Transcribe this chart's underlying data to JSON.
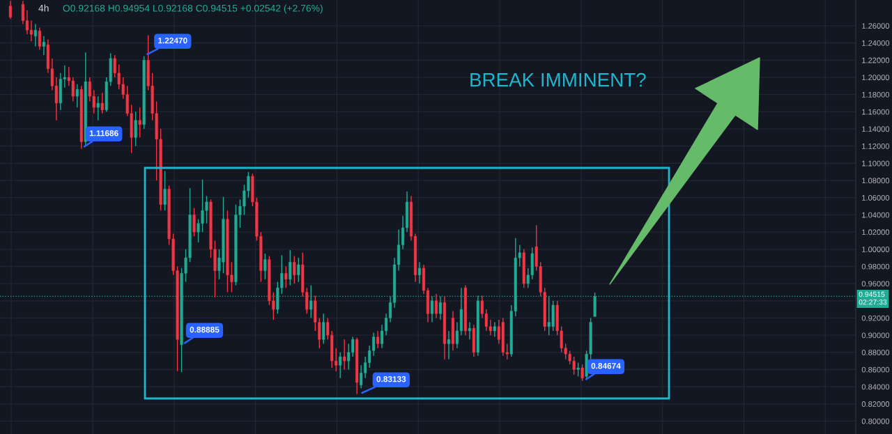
{
  "chart_data": {
    "type": "candlestick",
    "title": "4h",
    "subtitle": "O0.92168 H0.94954 L0.92168 C0.94515 +0.02542 (+2.76%)",
    "categories": [
      null,
      null,
      null,
      null,
      null,
      null,
      null,
      null,
      null,
      null,
      null,
      null,
      null,
      null,
      null,
      null,
      null,
      null,
      null,
      null,
      null,
      null,
      null,
      null,
      null,
      null,
      null,
      null,
      null,
      null,
      null,
      null,
      null,
      null,
      null,
      null,
      null,
      null,
      null,
      null,
      null,
      null,
      null,
      null,
      null,
      null,
      null,
      null,
      null,
      null,
      null,
      null,
      null,
      null,
      null,
      null,
      null,
      null,
      null,
      null,
      null,
      null,
      null,
      null,
      null,
      null,
      null,
      null,
      null,
      null,
      null,
      null,
      null,
      null,
      null,
      null,
      null,
      null,
      null,
      null,
      null,
      null,
      null,
      null,
      null,
      null,
      null,
      null,
      null,
      null,
      null,
      null,
      null,
      null,
      null,
      null,
      null,
      null,
      null,
      null,
      null,
      null,
      null,
      null,
      null,
      null,
      null,
      null,
      null,
      null,
      null,
      null,
      null,
      null,
      null,
      null,
      null,
      null,
      null,
      null,
      null,
      null,
      null,
      null,
      null,
      null,
      null,
      null,
      null,
      null,
      null,
      null,
      null,
      null,
      null,
      null,
      null,
      null,
      null,
      null,
      null,
      null,
      null,
      null,
      null,
      null,
      null,
      null,
      null,
      null,
      null,
      null,
      null,
      null,
      null,
      null,
      null,
      null,
      null,
      null,
      null,
      null,
      null,
      null,
      null,
      null,
      null,
      null,
      null,
      null,
      null,
      null,
      null,
      null,
      null,
      null,
      null,
      null,
      null,
      null,
      null,
      null,
      null,
      null,
      null,
      null,
      null,
      null,
      null,
      null,
      null,
      null,
      null,
      null,
      null,
      null,
      null,
      null,
      null,
      null,
      null,
      null,
      null,
      null,
      null
    ],
    "ohlc": [
      null,
      null,
      [
        1.283,
        1.289,
        1.268,
        1.27
      ],
      null,
      null,
      [
        1.285,
        1.289,
        1.262,
        1.266
      ],
      [
        1.266,
        1.278,
        1.25,
        1.255
      ],
      [
        1.255,
        1.266,
        1.242,
        1.25
      ],
      [
        1.248,
        1.262,
        1.236,
        1.255
      ],
      [
        1.254,
        1.258,
        1.232,
        1.236
      ],
      [
        1.236,
        1.248,
        1.226,
        1.241
      ],
      [
        1.238,
        1.244,
        1.205,
        1.21
      ],
      [
        1.21,
        1.222,
        1.185,
        1.19
      ],
      [
        1.19,
        1.2,
        1.15,
        1.17
      ],
      [
        1.17,
        1.205,
        1.162,
        1.198
      ],
      [
        1.198,
        1.214,
        1.188,
        1.2
      ],
      [
        1.2,
        1.212,
        1.19,
        1.196
      ],
      [
        1.196,
        1.2,
        1.172,
        1.178
      ],
      [
        1.178,
        1.192,
        1.165,
        1.186
      ],
      [
        1.186,
        1.19,
        1.11686,
        1.125
      ],
      [
        1.125,
        1.229,
        1.12,
        1.195
      ],
      [
        1.195,
        1.2,
        1.172,
        1.178
      ],
      [
        1.178,
        1.185,
        1.158,
        1.165
      ],
      [
        1.165,
        1.178,
        1.15,
        1.17
      ],
      [
        1.17,
        1.182,
        1.158,
        1.162
      ],
      [
        1.162,
        1.2,
        1.16,
        1.195
      ],
      [
        1.195,
        1.228,
        1.19,
        1.222
      ],
      [
        1.222,
        1.226,
        1.2,
        1.205
      ],
      [
        1.205,
        1.215,
        1.186,
        1.192
      ],
      [
        1.192,
        1.2,
        1.175,
        1.18
      ],
      [
        1.18,
        1.19,
        1.155,
        1.158
      ],
      [
        1.158,
        1.168,
        1.112,
        1.13
      ],
      [
        1.13,
        1.16,
        1.12,
        1.15
      ],
      [
        1.15,
        1.165,
        1.13,
        1.145
      ],
      [
        1.145,
        1.2247,
        1.14,
        1.22
      ],
      [
        1.22,
        1.249,
        1.185,
        1.19
      ],
      [
        1.19,
        1.205,
        1.15,
        1.158
      ],
      [
        1.158,
        1.172,
        1.08,
        1.128
      ],
      [
        1.128,
        1.14,
        1.045,
        1.052
      ],
      [
        1.052,
        1.091,
        1.045,
        1.07
      ],
      [
        1.07,
        1.074,
        1.005,
        1.012
      ],
      [
        1.012,
        1.018,
        0.97,
        0.975
      ],
      [
        0.975,
        0.98,
        0.858,
        0.895
      ],
      [
        0.88885,
        0.978,
        0.857,
        0.972
      ],
      [
        0.972,
        1.0,
        0.962,
        0.99
      ],
      [
        0.99,
        1.071,
        0.985,
        1.04
      ],
      [
        1.04,
        1.048,
        1.015,
        1.02
      ],
      [
        1.02,
        1.035,
        1.008,
        1.03
      ],
      [
        1.03,
        1.081,
        1.02,
        1.045
      ],
      [
        1.045,
        1.062,
        1.03,
        1.055
      ],
      [
        1.055,
        1.058,
        0.99,
        1.0
      ],
      [
        1.0,
        1.01,
        0.944,
        0.975
      ],
      [
        0.975,
        1.0,
        0.965,
        0.99
      ],
      [
        0.985,
        1.061,
        0.972,
        1.035
      ],
      [
        1.035,
        1.045,
        0.95,
        0.97
      ],
      [
        0.97,
        0.985,
        0.95,
        0.962
      ],
      [
        0.962,
        1.052,
        0.958,
        1.04
      ],
      [
        1.04,
        1.058,
        1.025,
        1.05
      ],
      [
        1.05,
        1.075,
        1.04,
        1.068
      ],
      [
        1.068,
        1.09,
        1.06,
        1.085
      ],
      [
        1.085,
        1.088,
        1.05,
        1.055
      ],
      [
        1.055,
        1.06,
        1.01,
        1.015
      ],
      [
        1.015,
        1.02,
        0.962,
        0.975
      ],
      [
        0.975,
        0.995,
        0.965,
        0.988
      ],
      [
        0.988,
        0.992,
        0.935,
        0.94
      ],
      [
        0.94,
        0.95,
        0.918,
        0.93
      ],
      [
        0.93,
        0.962,
        0.925,
        0.955
      ],
      [
        0.955,
        0.993,
        0.948,
        0.972
      ],
      [
        0.972,
        0.98,
        0.955,
        0.965
      ],
      [
        0.965,
        0.999,
        0.958,
        0.985
      ],
      [
        0.985,
        0.992,
        0.96,
        0.97
      ],
      [
        0.97,
        0.99,
        0.962,
        0.982
      ],
      [
        0.982,
        0.996,
        0.945,
        0.95
      ],
      [
        0.95,
        0.955,
        0.925,
        0.93
      ],
      [
        0.93,
        0.958,
        0.92,
        0.94
      ],
      [
        0.94,
        0.946,
        0.905,
        0.915
      ],
      [
        0.915,
        0.92,
        0.885,
        0.895
      ],
      [
        0.895,
        0.925,
        0.89,
        0.915
      ],
      [
        0.915,
        0.92,
        0.895,
        0.9
      ],
      [
        0.9,
        0.905,
        0.862,
        0.87
      ],
      [
        0.87,
        0.885,
        0.858,
        0.865
      ],
      [
        0.865,
        0.88,
        0.85,
        0.875
      ],
      [
        0.875,
        0.895,
        0.86,
        0.87
      ],
      [
        0.87,
        0.89,
        0.86,
        0.88
      ],
      [
        0.88,
        0.898,
        0.875,
        0.895
      ],
      [
        0.895,
        0.897,
        0.83133,
        0.845
      ],
      [
        0.842,
        0.865,
        0.838,
        0.856
      ],
      [
        0.856,
        0.875,
        0.85,
        0.868
      ],
      [
        0.868,
        0.888,
        0.862,
        0.882
      ],
      [
        0.882,
        0.903,
        0.876,
        0.898
      ],
      [
        0.898,
        0.905,
        0.885,
        0.89
      ],
      [
        0.89,
        0.912,
        0.885,
        0.905
      ],
      [
        0.905,
        0.925,
        0.9,
        0.92
      ],
      [
        0.92,
        0.945,
        0.915,
        0.938
      ],
      [
        0.938,
        0.99,
        0.932,
        0.982
      ],
      [
        0.982,
        1.023,
        0.975,
        1.005
      ],
      [
        1.005,
        1.039,
        1.0,
        1.025
      ],
      [
        1.025,
        1.067,
        1.02,
        1.055
      ],
      [
        1.055,
        1.062,
        1.01,
        1.015
      ],
      [
        1.015,
        1.018,
        0.962,
        0.97
      ],
      [
        0.97,
        0.985,
        0.96,
        0.978
      ],
      [
        0.978,
        0.982,
        0.948,
        0.952
      ],
      [
        0.952,
        0.955,
        0.915,
        0.925
      ],
      [
        0.925,
        0.945,
        0.915,
        0.94
      ],
      [
        0.94,
        0.948,
        0.92,
        0.925
      ],
      [
        0.925,
        0.945,
        0.918,
        0.938
      ],
      [
        0.938,
        0.945,
        0.872,
        0.89
      ],
      [
        0.89,
        0.905,
        0.872,
        0.895
      ],
      [
        0.92,
        0.928,
        0.882,
        0.89
      ],
      [
        0.89,
        0.915,
        0.885,
        0.905
      ],
      [
        0.905,
        0.955,
        0.9,
        0.93
      ],
      [
        0.955,
        0.958,
        0.9,
        0.905
      ],
      [
        0.905,
        0.915,
        0.895,
        0.908
      ],
      [
        0.908,
        0.912,
        0.875,
        0.88
      ],
      [
        0.88,
        0.946,
        0.876,
        0.94
      ],
      [
        0.94,
        0.946,
        0.92,
        0.925
      ],
      [
        0.925,
        0.93,
        0.905,
        0.91
      ],
      [
        0.91,
        0.918,
        0.9,
        0.905
      ],
      [
        0.905,
        0.915,
        0.898,
        0.91
      ],
      [
        0.91,
        0.918,
        0.89,
        0.895
      ],
      [
        0.915,
        0.92,
        0.876,
        0.88
      ],
      [
        0.88,
        0.89,
        0.872,
        0.878
      ],
      [
        0.878,
        0.935,
        0.875,
        0.928
      ],
      [
        0.928,
        1.013,
        0.922,
        0.99
      ],
      [
        0.99,
        1.005,
        0.98,
        0.996
      ],
      [
        0.996,
        1.0,
        0.955,
        0.96
      ],
      [
        0.96,
        0.978,
        0.955,
        0.97
      ],
      [
        0.97,
        1.002,
        0.965,
        0.995
      ],
      [
        1.003,
        1.028,
        0.975,
        0.98
      ],
      [
        0.98,
        0.985,
        0.945,
        0.95
      ],
      [
        0.95,
        0.955,
        0.905,
        0.91
      ],
      [
        0.91,
        0.945,
        0.9,
        0.915
      ],
      [
        0.91,
        0.94,
        0.905,
        0.935
      ],
      [
        0.935,
        0.94,
        0.9,
        0.905
      ],
      [
        0.905,
        0.91,
        0.88,
        0.885
      ],
      [
        0.885,
        0.89,
        0.872,
        0.878
      ],
      [
        0.878,
        0.882,
        0.866,
        0.87
      ],
      [
        0.87,
        0.875,
        0.854,
        0.86
      ],
      [
        0.86,
        0.868,
        0.852,
        0.862
      ],
      [
        0.862,
        0.866,
        0.84674,
        0.85
      ],
      [
        0.852,
        0.882,
        0.848,
        0.878
      ],
      [
        0.878,
        0.92,
        0.872,
        0.915
      ],
      [
        0.92168,
        0.94954,
        0.92168,
        0.94515
      ],
      null,
      null,
      null,
      null,
      null,
      null,
      null,
      null,
      null,
      null,
      null,
      null,
      null,
      null,
      null,
      null,
      null,
      null,
      null,
      null,
      null,
      null,
      null,
      null,
      null,
      null,
      null,
      null,
      null,
      null,
      null,
      null,
      null,
      null,
      null,
      null,
      null,
      null,
      null,
      null,
      null,
      null,
      null,
      null,
      null,
      null,
      null,
      null,
      null,
      null,
      null,
      null,
      null,
      null,
      null,
      null,
      null,
      null,
      null,
      null,
      null,
      null
    ],
    "colors": [
      null,
      null,
      "#f23645",
      null,
      null,
      "#f23645",
      "#f23645",
      "#f23645",
      "#22ab94",
      "#f23645",
      "#22ab94",
      "#f23645",
      "#f23645",
      "#f23645",
      "#22ab94",
      "#22ab94",
      "#f23645",
      "#f23645",
      "#22ab94",
      "#f23645",
      "#22ab94",
      "#f23645",
      "#f23645",
      "#22ab94",
      "#f23645",
      "#22ab94",
      "#22ab94",
      "#f23645",
      "#f23645",
      "#f23645",
      "#f23645",
      "#f23645",
      "#22ab94",
      "#f23645",
      "#22ab94",
      "#f23645",
      "#f23645",
      "#f23645",
      "#f23645",
      "#22ab94",
      "#f23645",
      "#f23645",
      "#f23645",
      "#22ab94",
      "#22ab94",
      "#22ab94",
      "#f23645",
      "#22ab94",
      "#22ab94",
      "#22ab94",
      "#f23645",
      "#f23645",
      "#22ab94",
      "#22ab94",
      "#f23645",
      "#f23645",
      "#22ab94",
      "#22ab94",
      "#22ab94",
      "#22ab94",
      "#f23645",
      "#f23645",
      "#f23645",
      "#22ab94",
      "#f23645",
      "#f23645",
      "#22ab94",
      "#22ab94",
      "#f23645",
      "#22ab94",
      "#f23645",
      "#22ab94",
      "#f23645",
      "#f23645",
      "#22ab94",
      "#f23645",
      "#f23645",
      "#22ab94",
      "#f23645",
      "#f23645",
      "#f23645",
      "#22ab94",
      "#f23645",
      "#22ab94",
      "#22ab94",
      "#f23645",
      "#22ab94",
      "#22ab94",
      "#22ab94",
      "#22ab94",
      "#f23645",
      "#22ab94",
      "#22ab94",
      "#22ab94",
      "#22ab94",
      "#22ab94",
      "#22ab94",
      "#22ab94",
      "#f23645",
      "#f23645",
      "#22ab94",
      "#f23645",
      "#f23645",
      "#22ab94",
      "#f23645",
      "#22ab94",
      "#f23645",
      "#22ab94",
      "#f23645",
      "#22ab94",
      "#22ab94",
      "#f23645",
      "#22ab94",
      "#f23645",
      "#22ab94",
      "#f23645",
      "#f23645",
      "#f23645",
      "#22ab94",
      "#f23645",
      "#f23645",
      "#f23645",
      "#22ab94",
      "#22ab94",
      "#22ab94",
      "#f23645",
      "#22ab94",
      "#22ab94",
      "#f23645",
      "#f23645",
      "#f23645",
      "#22ab94",
      "#22ab94",
      "#f23645",
      "#f23645",
      "#f23645",
      "#f23645",
      "#f23645",
      "#22ab94",
      "#f23645",
      "#22ab94",
      "#22ab94",
      "#22ab94",
      null,
      null,
      null,
      null,
      null,
      null,
      null,
      null,
      null,
      null,
      null,
      null,
      null,
      null,
      null,
      null,
      null,
      null,
      null,
      null,
      null,
      null,
      null,
      null,
      null,
      null,
      null,
      null,
      null,
      null,
      null,
      null,
      null,
      null,
      null,
      null,
      null,
      null,
      null,
      null,
      null,
      null,
      null,
      null,
      null,
      null,
      null,
      null,
      null,
      null,
      null,
      null,
      null,
      null,
      null,
      null,
      null,
      null,
      null,
      null,
      null,
      null
    ],
    "annotations": [
      "1.22470",
      "1.11686",
      "0.88885",
      "0.83133",
      "0.84674",
      "BREAK IMMINENT?"
    ],
    "ylim": [
      0.785,
      1.29
    ],
    "yticks": [
      {
        "value": 0.8,
        "label": "0.80000"
      },
      {
        "value": 0.82,
        "label": "0.82000"
      },
      {
        "value": 0.84,
        "label": "0.84000"
      },
      {
        "value": 0.86,
        "label": "0.86000"
      },
      {
        "value": 0.88,
        "label": "0.88000"
      },
      {
        "value": 0.9,
        "label": "0.90000"
      },
      {
        "value": 0.92,
        "label": "0.92000"
      },
      {
        "value": 0.94,
        "label": null
      },
      {
        "value": 0.96,
        "label": "0.96000"
      },
      {
        "value": 0.98,
        "label": "0.98000"
      },
      {
        "value": 1.0,
        "label": "1.00000"
      },
      {
        "value": 1.02,
        "label": "1.02000"
      },
      {
        "value": 1.04,
        "label": "1.04000"
      },
      {
        "value": 1.06,
        "label": "1.06000"
      },
      {
        "value": 1.08,
        "label": "1.08000"
      },
      {
        "value": 1.1,
        "label": "1.10000"
      },
      {
        "value": 1.12,
        "label": "1.12000"
      },
      {
        "value": 1.14,
        "label": "1.14000"
      },
      {
        "value": 1.16,
        "label": "1.16000"
      },
      {
        "value": 1.18,
        "label": "1.18000"
      },
      {
        "value": 1.2,
        "label": "1.20000"
      },
      {
        "value": 1.22,
        "label": "1.22000"
      },
      {
        "value": 1.24,
        "label": "1.24000"
      },
      {
        "value": 1.26,
        "label": "1.26000"
      }
    ],
    "ref_lines": [
      {
        "axis": "y",
        "value": 0.94515,
        "label": "0.94515\n02:27:33",
        "color": "#22ab94",
        "line_style": "dotted"
      }
    ],
    "grid": true,
    "tick_labels": "y"
  }
}
